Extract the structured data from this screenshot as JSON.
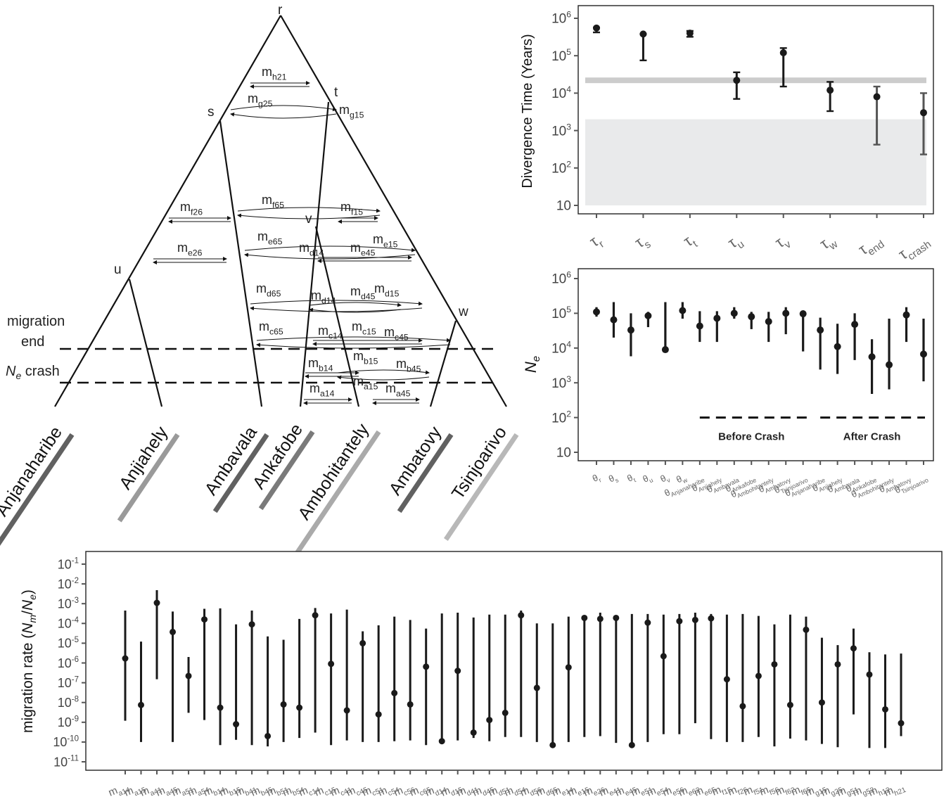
{
  "tree": {
    "nodes": {
      "r": "r",
      "s": "s",
      "t": "t",
      "u": "u",
      "v": "v",
      "w": "w"
    },
    "side_labels": {
      "migration": "migration",
      "end": "end",
      "ne_sym": "N",
      "ne_sub": "e",
      "crash": "crash"
    },
    "populations": [
      {
        "name": "Anjanaharibe",
        "color": "#616161"
      },
      {
        "name": "Anjiahely",
        "color": "#9a9a9a"
      },
      {
        "name": "Ambavala",
        "color": "#616161"
      },
      {
        "name": "Ankafobe",
        "color": "#7a7a7a"
      },
      {
        "name": "Ambohitantely",
        "color": "#aaaaaa"
      },
      {
        "name": "Ambatovy",
        "color": "#616161"
      },
      {
        "name": "Tsinjoarivo",
        "color": "#b8b8b8"
      }
    ],
    "migration_labels": [
      {
        "base": "m",
        "sub": "h21"
      },
      {
        "base": "m",
        "sub": "g25"
      },
      {
        "base": "m",
        "sub": "g15"
      },
      {
        "base": "m",
        "sub": "f26"
      },
      {
        "base": "m",
        "sub": "f65"
      },
      {
        "base": "m",
        "sub": "f15"
      },
      {
        "base": "m",
        "sub": "e26"
      },
      {
        "base": "m",
        "sub": "e65"
      },
      {
        "base": "m",
        "sub": "d14"
      },
      {
        "base": "m",
        "sub": "e45"
      },
      {
        "base": "m",
        "sub": "e15"
      },
      {
        "base": "m",
        "sub": "d65"
      },
      {
        "base": "m",
        "sub": "d14"
      },
      {
        "base": "m",
        "sub": "d45"
      },
      {
        "base": "m",
        "sub": "d15"
      },
      {
        "base": "m",
        "sub": "c65"
      },
      {
        "base": "m",
        "sub": "c14"
      },
      {
        "base": "m",
        "sub": "c15"
      },
      {
        "base": "m",
        "sub": "c45"
      },
      {
        "base": "m",
        "sub": "b14"
      },
      {
        "base": "m",
        "sub": "b15"
      },
      {
        "base": "m",
        "sub": "b45"
      },
      {
        "base": "m",
        "sub": "a15"
      },
      {
        "base": "m",
        "sub": "a14"
      },
      {
        "base": "m",
        "sub": "a45"
      }
    ]
  },
  "chart_data": [
    {
      "type": "scatter",
      "ylabel": "Divergence Time (Years)",
      "yscale": "log",
      "ylim": [
        10,
        1000000
      ],
      "y_ticks": [
        "10",
        "10^2",
        "10^3",
        "10^4",
        "10^5",
        "10^6"
      ],
      "categories": [
        {
          "base": "τ",
          "sub": "r"
        },
        {
          "base": "τ",
          "sub": "s"
        },
        {
          "base": "τ",
          "sub": "t"
        },
        {
          "base": "τ",
          "sub": "u"
        },
        {
          "base": "τ",
          "sub": "v"
        },
        {
          "base": "τ",
          "sub": "w"
        },
        {
          "base": "τ",
          "sub": "end"
        },
        {
          "base": "τ",
          "sub": "crash"
        }
      ],
      "points": [
        {
          "value": 550000,
          "lo": 420000,
          "hi": 560000
        },
        {
          "value": 380000,
          "lo": 75000,
          "hi": 380000
        },
        {
          "value": 400000,
          "lo": 320000,
          "hi": 460000
        },
        {
          "value": 22000,
          "lo": 7000,
          "hi": 36000
        },
        {
          "value": 120000,
          "lo": 15000,
          "hi": 160000
        },
        {
          "value": 12000,
          "lo": 3300,
          "hi": 20000
        },
        {
          "value": 8000,
          "lo": 420,
          "hi": 15000
        },
        {
          "value": 3000,
          "lo": 230,
          "hi": 10000
        }
      ],
      "band_line": {
        "value": 22000,
        "color": "#cccccc"
      },
      "band_area": {
        "lo": 10,
        "hi": 2000,
        "color": "#e9eaeb"
      },
      "grid": false
    },
    {
      "type": "scatter",
      "ylabel": {
        "base": "N",
        "sub": "e"
      },
      "yscale": "log",
      "ylim": [
        10,
        1000000
      ],
      "y_ticks": [
        "10",
        "10^2",
        "10^3",
        "10^4",
        "10^5",
        "10^6"
      ],
      "categories": [
        {
          "base": "θ",
          "sub": "r"
        },
        {
          "base": "θ",
          "sub": "s"
        },
        {
          "base": "θ",
          "sub": "t"
        },
        {
          "base": "θ",
          "sub": "u"
        },
        {
          "base": "θ",
          "sub": "v"
        },
        {
          "base": "θ",
          "sub": "w"
        },
        {
          "base": "θ",
          "sub": "Anjanaharibe"
        },
        {
          "base": "θ",
          "sub": "Anjiahely"
        },
        {
          "base": "θ",
          "sub": "Ambavala"
        },
        {
          "base": "θ",
          "sub": "Ankafobe"
        },
        {
          "base": "θ",
          "sub": "Ambohitantely"
        },
        {
          "base": "θ",
          "sub": "Ambatovy"
        },
        {
          "base": "θ",
          "sub": "Tsinjoarivo"
        },
        {
          "base": "θ",
          "sub": "Anjanaharibe"
        },
        {
          "base": "θ",
          "sub": "Anjiahely"
        },
        {
          "base": "θ",
          "sub": "Ambavala"
        },
        {
          "base": "θ",
          "sub": "Ankafobe"
        },
        {
          "base": "θ",
          "sub": "Ambohitantely"
        },
        {
          "base": "θ",
          "sub": "Ambatovy"
        },
        {
          "base": "θ",
          "sub": "Tsinjoarivo"
        }
      ],
      "points": [
        {
          "value": 110000,
          "lo": 80000,
          "hi": 150000
        },
        {
          "value": 65000,
          "lo": 20000,
          "hi": 210000
        },
        {
          "value": 33000,
          "lo": 5800,
          "hi": 100000
        },
        {
          "value": 85000,
          "lo": 40000,
          "hi": 110000
        },
        {
          "value": 9000,
          "lo": 9000,
          "hi": 210000
        },
        {
          "value": 120000,
          "lo": 70000,
          "hi": 210000
        },
        {
          "value": 43000,
          "lo": 15000,
          "hi": 115000
        },
        {
          "value": 72000,
          "lo": 15000,
          "hi": 115000
        },
        {
          "value": 100000,
          "lo": 70000,
          "hi": 150000
        },
        {
          "value": 80000,
          "lo": 35000,
          "hi": 110000
        },
        {
          "value": 58000,
          "lo": 15000,
          "hi": 110000
        },
        {
          "value": 100000,
          "lo": 25000,
          "hi": 150000
        },
        {
          "value": 97000,
          "lo": 8000,
          "hi": 110000
        },
        {
          "value": 33000,
          "lo": 2400,
          "hi": 75000
        },
        {
          "value": 11000,
          "lo": 1800,
          "hi": 50000
        },
        {
          "value": 48000,
          "lo": 4500,
          "hi": 100000
        },
        {
          "value": 5600,
          "lo": 480,
          "hi": 18000
        },
        {
          "value": 3300,
          "lo": 650,
          "hi": 70000
        },
        {
          "value": 90000,
          "lo": 15000,
          "hi": 150000
        },
        {
          "value": 6700,
          "lo": 1100,
          "hi": 70000
        }
      ],
      "legend": [
        "Before Crash",
        "After Crash"
      ],
      "grid": false
    },
    {
      "type": "scatter",
      "ylabel": {
        "text": "migration rate (",
        "base": "N",
        "sub": "m",
        "mid": "/",
        "base2": "N",
        "sub2": "e",
        "end": ")"
      },
      "yscale": "log",
      "ylim": [
        1e-11,
        0.1
      ],
      "y_ticks": [
        "10^-11",
        "10^-10",
        "10^-9",
        "10^-8",
        "10^-7",
        "10^-6",
        "10^-5",
        "10^-4",
        "10^-3",
        "10^-2",
        "10^-1"
      ],
      "categories": [
        {
          "base": "m",
          "sub": "a14"
        },
        {
          "base": "m",
          "sub": "a15"
        },
        {
          "base": "m",
          "sub": "a41"
        },
        {
          "base": "m",
          "sub": "a45"
        },
        {
          "base": "m",
          "sub": "a51"
        },
        {
          "base": "m",
          "sub": "a54"
        },
        {
          "base": "m",
          "sub": "b14"
        },
        {
          "base": "m",
          "sub": "b15"
        },
        {
          "base": "m",
          "sub": "b41"
        },
        {
          "base": "m",
          "sub": "b45"
        },
        {
          "base": "m",
          "sub": "b51"
        },
        {
          "base": "m",
          "sub": "b54"
        },
        {
          "base": "m",
          "sub": "c14"
        },
        {
          "base": "m",
          "sub": "c15"
        },
        {
          "base": "m",
          "sub": "c41"
        },
        {
          "base": "m",
          "sub": "c45"
        },
        {
          "base": "m",
          "sub": "c51"
        },
        {
          "base": "m",
          "sub": "c54"
        },
        {
          "base": "m",
          "sub": "c56"
        },
        {
          "base": "m",
          "sub": "c65"
        },
        {
          "base": "m",
          "sub": "d14"
        },
        {
          "base": "m",
          "sub": "d15"
        },
        {
          "base": "m",
          "sub": "d41"
        },
        {
          "base": "m",
          "sub": "d45"
        },
        {
          "base": "m",
          "sub": "d51"
        },
        {
          "base": "m",
          "sub": "d54"
        },
        {
          "base": "m",
          "sub": "d56"
        },
        {
          "base": "m",
          "sub": "d65"
        },
        {
          "base": "m",
          "sub": "e14"
        },
        {
          "base": "m",
          "sub": "e15"
        },
        {
          "base": "m",
          "sub": "e26"
        },
        {
          "base": "m",
          "sub": "e41"
        },
        {
          "base": "m",
          "sub": "e45"
        },
        {
          "base": "m",
          "sub": "e51"
        },
        {
          "base": "m",
          "sub": "e54"
        },
        {
          "base": "m",
          "sub": "e56"
        },
        {
          "base": "m",
          "sub": "e62"
        },
        {
          "base": "m",
          "sub": "e65"
        },
        {
          "base": "m",
          "sub": "f15"
        },
        {
          "base": "m",
          "sub": "f26"
        },
        {
          "base": "m",
          "sub": "f51"
        },
        {
          "base": "m",
          "sub": "f56"
        },
        {
          "base": "m",
          "sub": "f62"
        },
        {
          "base": "m",
          "sub": "f65"
        },
        {
          "base": "m",
          "sub": "g15"
        },
        {
          "base": "m",
          "sub": "g25"
        },
        {
          "base": "m",
          "sub": "g51"
        },
        {
          "base": "m",
          "sub": "g52"
        },
        {
          "base": "m",
          "sub": "h12"
        },
        {
          "base": "m",
          "sub": "h21"
        }
      ],
      "points": [
        {
          "value": 1.7e-06,
          "lo": 1.2e-09,
          "hi": 0.00045
        },
        {
          "value": 7.5e-09,
          "lo": 1e-10,
          "hi": 1.2e-05
        },
        {
          "value": 0.0011,
          "lo": 1.5e-07,
          "hi": 0.0048
        },
        {
          "value": 3.7e-05,
          "lo": 1e-10,
          "hi": 0.0004
        },
        {
          "value": 2.2e-07,
          "lo": 3e-09,
          "hi": 2e-06
        },
        {
          "value": 0.00016,
          "lo": 1.3e-09,
          "hi": 0.00055
        },
        {
          "value": 5.5e-09,
          "lo": 7e-11,
          "hi": 0.00058
        },
        {
          "value": 8e-10,
          "lo": 1.3e-10,
          "hi": 9e-05
        },
        {
          "value": 9e-05,
          "lo": 7e-11,
          "hi": 0.00045
        },
        {
          "value": 2e-10,
          "lo": 6e-11,
          "hi": 2.2e-05
        },
        {
          "value": 8e-09,
          "lo": 1e-10,
          "hi": 1.5e-05
        },
        {
          "value": 5.5e-09,
          "lo": 1.6e-10,
          "hi": 0.00017
        },
        {
          "value": 0.00026,
          "lo": 3e-10,
          "hi": 0.0006
        },
        {
          "value": 9e-07,
          "lo": 7e-11,
          "hi": 0.00032
        },
        {
          "value": 4e-09,
          "lo": 1.2e-10,
          "hi": 0.0005
        },
        {
          "value": 1e-05,
          "lo": 1e-10,
          "hi": 4e-05
        },
        {
          "value": 2.5e-09,
          "lo": 1e-10,
          "hi": 8e-05
        },
        {
          "value": 3e-08,
          "lo": 1.1e-10,
          "hi": 0.00022
        },
        {
          "value": 8e-09,
          "lo": 1.2e-10,
          "hi": 0.00015
        },
        {
          "value": 6.5e-07,
          "lo": 7e-11,
          "hi": 5.5e-05
        },
        {
          "value": 1.1e-10,
          "lo": 1e-10,
          "hi": 0.00032
        },
        {
          "value": 4e-07,
          "lo": 1.2e-10,
          "hi": 0.00035
        },
        {
          "value": 3e-10,
          "lo": 1.6e-10,
          "hi": 0.0002
        },
        {
          "value": 1.3e-09,
          "lo": 1.1e-10,
          "hi": 0.00028
        },
        {
          "value": 3e-09,
          "lo": 1.8e-10,
          "hi": 0.00028
        },
        {
          "value": 0.00026,
          "lo": 1.8e-10,
          "hi": 0.00045
        },
        {
          "value": 5.5e-08,
          "lo": 1e-10,
          "hi": 0.0001
        },
        {
          "value": 7e-11,
          "lo": 6e-11,
          "hi": 0.0001
        },
        {
          "value": 6e-07,
          "lo": 1e-10,
          "hi": 0.00022
        },
        {
          "value": 0.00019,
          "lo": 1.8e-10,
          "hi": 0.00025
        },
        {
          "value": 0.00017,
          "lo": 2e-10,
          "hi": 0.00035
        },
        {
          "value": 0.00019,
          "lo": 9e-11,
          "hi": 0.00025
        },
        {
          "value": 7e-11,
          "lo": 6e-11,
          "hi": 0.0003
        },
        {
          "value": 0.00011,
          "lo": 1e-10,
          "hi": 0.0003
        },
        {
          "value": 2.2e-06,
          "lo": 2.5e-10,
          "hi": 0.00028
        },
        {
          "value": 0.00013,
          "lo": 2.5e-10,
          "hi": 0.0003
        },
        {
          "value": 0.00015,
          "lo": 9e-10,
          "hi": 0.00035
        },
        {
          "value": 0.00018,
          "lo": 1.4e-10,
          "hi": 0.0003
        },
        {
          "value": 1.5e-07,
          "lo": 1e-10,
          "hi": 0.00028
        },
        {
          "value": 6.5e-09,
          "lo": 1e-10,
          "hi": 0.0003
        },
        {
          "value": 2.2e-07,
          "lo": 1.8e-10,
          "hi": 0.00024
        },
        {
          "value": 8.5e-07,
          "lo": 6e-11,
          "hi": 9e-05
        },
        {
          "value": 7.5e-09,
          "lo": 1.5e-10,
          "hi": 0.00028
        },
        {
          "value": 4.8e-05,
          "lo": 1.2e-10,
          "hi": 0.00022
        },
        {
          "value": 1e-08,
          "lo": 8e-11,
          "hi": 1.9e-05
        },
        {
          "value": 8.5e-07,
          "lo": 5.5e-11,
          "hi": 8e-06
        },
        {
          "value": 5.5e-06,
          "lo": 2.5e-09,
          "hi": 5.5e-05
        },
        {
          "value": 2.6e-07,
          "lo": 5e-11,
          "hi": 3.5e-06
        },
        {
          "value": 4.5e-09,
          "lo": 5e-11,
          "hi": 2.7e-06
        },
        {
          "value": 9e-10,
          "lo": 2e-10,
          "hi": 3e-06
        }
      ],
      "grid": false
    }
  ]
}
